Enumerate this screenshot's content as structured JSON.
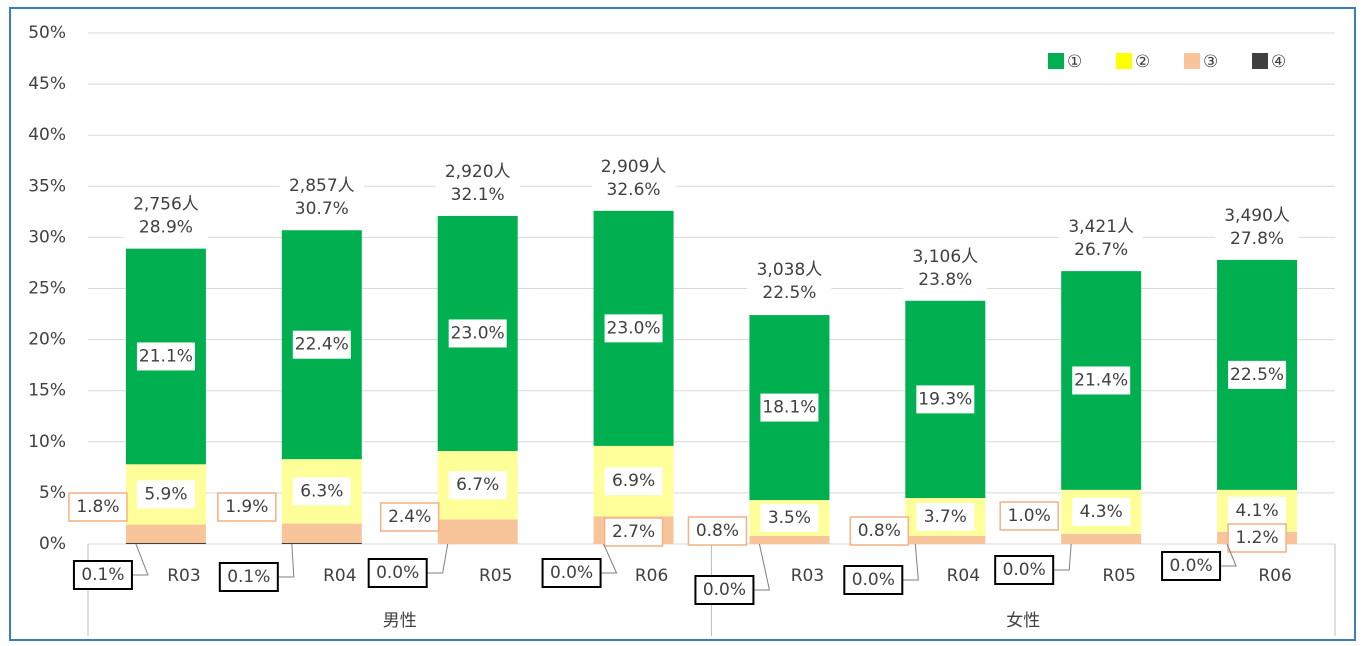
{
  "chart_data": {
    "type": "stacked_bar",
    "categories": [
      "R03",
      "R04",
      "R05",
      "R06",
      "R03",
      "R04",
      "R05",
      "R06"
    ],
    "groups": [
      {
        "name": "男性",
        "size": 4
      },
      {
        "name": "女性",
        "size": 4
      }
    ],
    "series": [
      {
        "name": "①",
        "color": "#00b050",
        "values": [
          21.1,
          22.4,
          23.0,
          23.0,
          18.1,
          19.3,
          21.4,
          22.5
        ],
        "value_labels": [
          "21.1%",
          "22.4%",
          "23.0%",
          "23.0%",
          "18.1%",
          "19.3%",
          "21.4%",
          "22.5%"
        ]
      },
      {
        "name": "②",
        "color": "#ffff99",
        "values": [
          5.9,
          6.3,
          6.7,
          6.9,
          3.5,
          3.7,
          4.3,
          4.1
        ],
        "value_labels": [
          "5.9%",
          "6.3%",
          "6.7%",
          "6.9%",
          "3.5%",
          "3.7%",
          "4.3%",
          "4.1%"
        ]
      },
      {
        "name": "③",
        "color": "#f8c499",
        "values": [
          1.8,
          1.9,
          2.4,
          2.7,
          0.8,
          0.8,
          1.0,
          1.2
        ],
        "value_labels": [
          "1.8%",
          "1.9%",
          "2.4%",
          "2.7%",
          "0.8%",
          "0.8%",
          "1.0%",
          "1.2%"
        ]
      },
      {
        "name": "④",
        "color": "#404040",
        "values": [
          0.1,
          0.1,
          0.0,
          0.0,
          0.0,
          0.0,
          0.0,
          0.0
        ],
        "value_labels": [
          "0.1%",
          "0.1%",
          "0.0%",
          "0.0%",
          "0.0%",
          "0.0%",
          "0.0%",
          "0.0%"
        ]
      }
    ],
    "totals": [
      28.9,
      30.7,
      32.1,
      32.6,
      22.5,
      23.8,
      26.7,
      27.8
    ],
    "total_labels": [
      "28.9%",
      "30.7%",
      "32.1%",
      "32.6%",
      "22.5%",
      "23.8%",
      "26.7%",
      "27.8%"
    ],
    "counts": [
      "2,756人",
      "2,857人",
      "2,920人",
      "2,909人",
      "3,038人",
      "3,106人",
      "3,421人",
      "3,490人"
    ],
    "ylim": [
      0,
      50
    ],
    "yticks": [
      {
        "value": 0,
        "label": "0%"
      },
      {
        "value": 5,
        "label": "5%"
      },
      {
        "value": 10,
        "label": "10%"
      },
      {
        "value": 15,
        "label": "15%"
      },
      {
        "value": 20,
        "label": "20%"
      },
      {
        "value": 25,
        "label": "25%"
      },
      {
        "value": 30,
        "label": "30%"
      },
      {
        "value": 35,
        "label": "35%"
      },
      {
        "value": 40,
        "label": "40%"
      },
      {
        "value": 45,
        "label": "45%"
      },
      {
        "value": 50,
        "label": "50%"
      }
    ],
    "grid": true,
    "legend": "top-right"
  }
}
